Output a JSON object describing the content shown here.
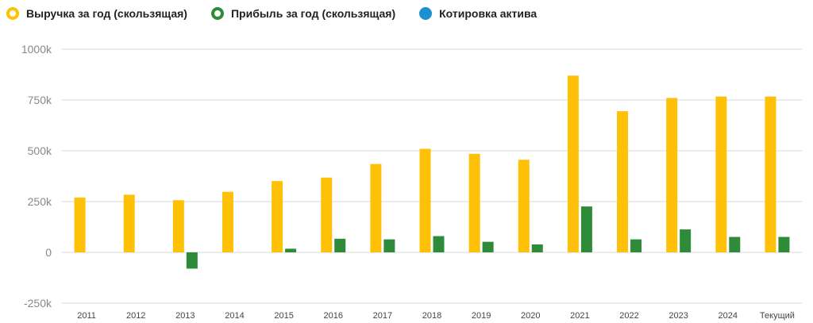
{
  "legend": [
    {
      "label": "Выручка за год (скользящая)",
      "color": "#FFC107",
      "style": "ring"
    },
    {
      "label": "Прибыль за год (скользящая)",
      "color": "#2E8B3A",
      "style": "ring"
    },
    {
      "label": "Котировка актива",
      "color": "#1E90D0",
      "style": "filled"
    }
  ],
  "chart_data": {
    "type": "bar",
    "categories": [
      "2011",
      "2012",
      "2013",
      "2014",
      "2015",
      "2016",
      "2017",
      "2018",
      "2019",
      "2020",
      "2021",
      "2022",
      "2023",
      "2024",
      "Текущий"
    ],
    "series": [
      {
        "name": "Выручка за год (скользящая)",
        "color": "#FFC107",
        "values": [
          270,
          284,
          257,
          298,
          351,
          368,
          435,
          510,
          485,
          456,
          870,
          695,
          760,
          767,
          767
        ]
      },
      {
        "name": "Прибыль за год (скользящая)",
        "color": "#2E8B3A",
        "values": [
          null,
          null,
          -80,
          null,
          18,
          67,
          64,
          80,
          52,
          39,
          226,
          64,
          113,
          76,
          76
        ]
      }
    ],
    "y_ticks": [
      1000,
      750,
      500,
      250,
      0,
      -250
    ],
    "y_tick_labels": [
      "1000k",
      "750k",
      "500k",
      "250k",
      "0",
      "-250k"
    ],
    "ylim": [
      -250,
      1000
    ],
    "grid": true,
    "legend_position": "top-left"
  }
}
